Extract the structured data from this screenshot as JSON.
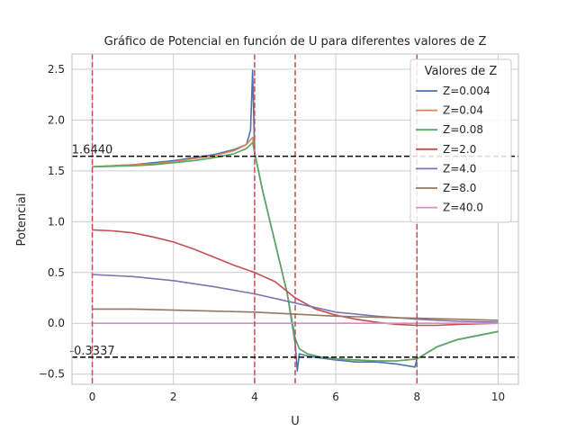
{
  "chart_data": {
    "type": "line",
    "title": "Gráfico de Potencial en función de U para diferentes valores de Z",
    "xlabel": "U",
    "ylabel": "Potencial",
    "xlim": [
      -0.5,
      10.5
    ],
    "ylim": [
      -0.6,
      2.65
    ],
    "xticks": [
      0,
      2,
      4,
      6,
      8,
      10
    ],
    "xtick_labels": [
      "0",
      "2",
      "4",
      "6",
      "8",
      "10"
    ],
    "yticks": [
      -0.5,
      0.0,
      0.5,
      1.0,
      1.5,
      2.0,
      2.5
    ],
    "ytick_labels": [
      "−0.5",
      "0.0",
      "0.5",
      "1.0",
      "1.5",
      "2.0",
      "2.5"
    ],
    "grid": true,
    "legend": {
      "title": "Valores de Z",
      "placement": "top-right"
    },
    "series": [
      {
        "name": "Z=0.004",
        "color": "#4c72b0",
        "x": [
          0,
          0.5,
          1,
          1.5,
          2,
          2.5,
          3,
          3.5,
          3.8,
          3.9,
          3.95,
          4,
          4.2,
          4.5,
          4.8,
          5,
          5.05,
          5.1,
          5.3,
          5.6,
          6,
          6.5,
          7,
          7.5,
          7.95,
          8,
          8.5,
          9,
          9.5,
          10
        ],
        "y": [
          1.54,
          1.55,
          1.56,
          1.58,
          1.6,
          1.63,
          1.66,
          1.71,
          1.76,
          1.9,
          2.49,
          1.68,
          1.3,
          0.8,
          0.3,
          -0.2,
          -0.47,
          -0.3,
          -0.32,
          -0.34,
          -0.36,
          -0.38,
          -0.38,
          -0.4,
          -0.43,
          -0.35,
          -0.23,
          -0.16,
          -0.12,
          -0.08
        ]
      },
      {
        "name": "Z=0.04",
        "color": "#dd8452",
        "x": [
          0,
          0.5,
          1,
          1.5,
          2,
          2.5,
          3,
          3.5,
          3.8,
          3.95,
          4,
          4.2,
          4.5,
          4.8,
          5,
          5.1,
          5.3,
          5.6,
          6,
          6.5,
          7,
          7.5,
          8,
          8.5,
          9,
          9.5,
          10
        ],
        "y": [
          1.54,
          1.55,
          1.56,
          1.57,
          1.59,
          1.62,
          1.65,
          1.7,
          1.76,
          1.83,
          1.68,
          1.3,
          0.8,
          0.3,
          -0.15,
          -0.25,
          -0.3,
          -0.33,
          -0.35,
          -0.36,
          -0.37,
          -0.37,
          -0.35,
          -0.23,
          -0.16,
          -0.12,
          -0.08
        ]
      },
      {
        "name": "Z=0.08",
        "color": "#55a868",
        "x": [
          0,
          0.5,
          1,
          1.5,
          2,
          2.5,
          3,
          3.5,
          3.8,
          3.95,
          4,
          4.2,
          4.5,
          4.8,
          5,
          5.1,
          5.3,
          5.6,
          6,
          6.5,
          7,
          7.5,
          8,
          8.5,
          9,
          9.5,
          10
        ],
        "y": [
          1.54,
          1.545,
          1.55,
          1.56,
          1.58,
          1.6,
          1.63,
          1.67,
          1.72,
          1.78,
          1.68,
          1.3,
          0.8,
          0.3,
          -0.15,
          -0.25,
          -0.3,
          -0.33,
          -0.35,
          -0.36,
          -0.37,
          -0.37,
          -0.35,
          -0.23,
          -0.16,
          -0.12,
          -0.08
        ]
      },
      {
        "name": "Z=2.0",
        "color": "#c44e52",
        "x": [
          0,
          0.5,
          1,
          1.5,
          2,
          2.5,
          3,
          3.5,
          4,
          4.5,
          5,
          5.5,
          6,
          6.5,
          7,
          7.5,
          8,
          8.5,
          9,
          9.5,
          10
        ],
        "y": [
          0.92,
          0.91,
          0.89,
          0.85,
          0.8,
          0.73,
          0.65,
          0.57,
          0.5,
          0.41,
          0.25,
          0.14,
          0.08,
          0.04,
          0.01,
          -0.01,
          -0.02,
          -0.02,
          -0.01,
          -0.005,
          0.0
        ]
      },
      {
        "name": "Z=4.0",
        "color": "#8172b3",
        "x": [
          0,
          1,
          2,
          3,
          4,
          5,
          6,
          7,
          8,
          9,
          10
        ],
        "y": [
          0.48,
          0.46,
          0.42,
          0.36,
          0.29,
          0.2,
          0.11,
          0.07,
          0.04,
          0.02,
          0.01
        ]
      },
      {
        "name": "Z=8.0",
        "color": "#937860",
        "x": [
          0,
          1,
          2,
          3,
          4,
          5,
          6,
          7,
          8,
          9,
          10
        ],
        "y": [
          0.14,
          0.14,
          0.13,
          0.12,
          0.11,
          0.09,
          0.07,
          0.06,
          0.05,
          0.04,
          0.03
        ]
      },
      {
        "name": "Z=40.0",
        "color": "#da8bc3",
        "x": [
          0,
          10
        ],
        "y": [
          0.0,
          0.0
        ]
      }
    ],
    "vlines": {
      "color": "#c44e52",
      "x": [
        0,
        4,
        5,
        8
      ]
    },
    "hlines": [
      {
        "y": 1.644,
        "label": "1.6440",
        "color": "#000000"
      },
      {
        "y": -0.3337,
        "label": "-0.3337",
        "color": "#000000"
      }
    ]
  }
}
